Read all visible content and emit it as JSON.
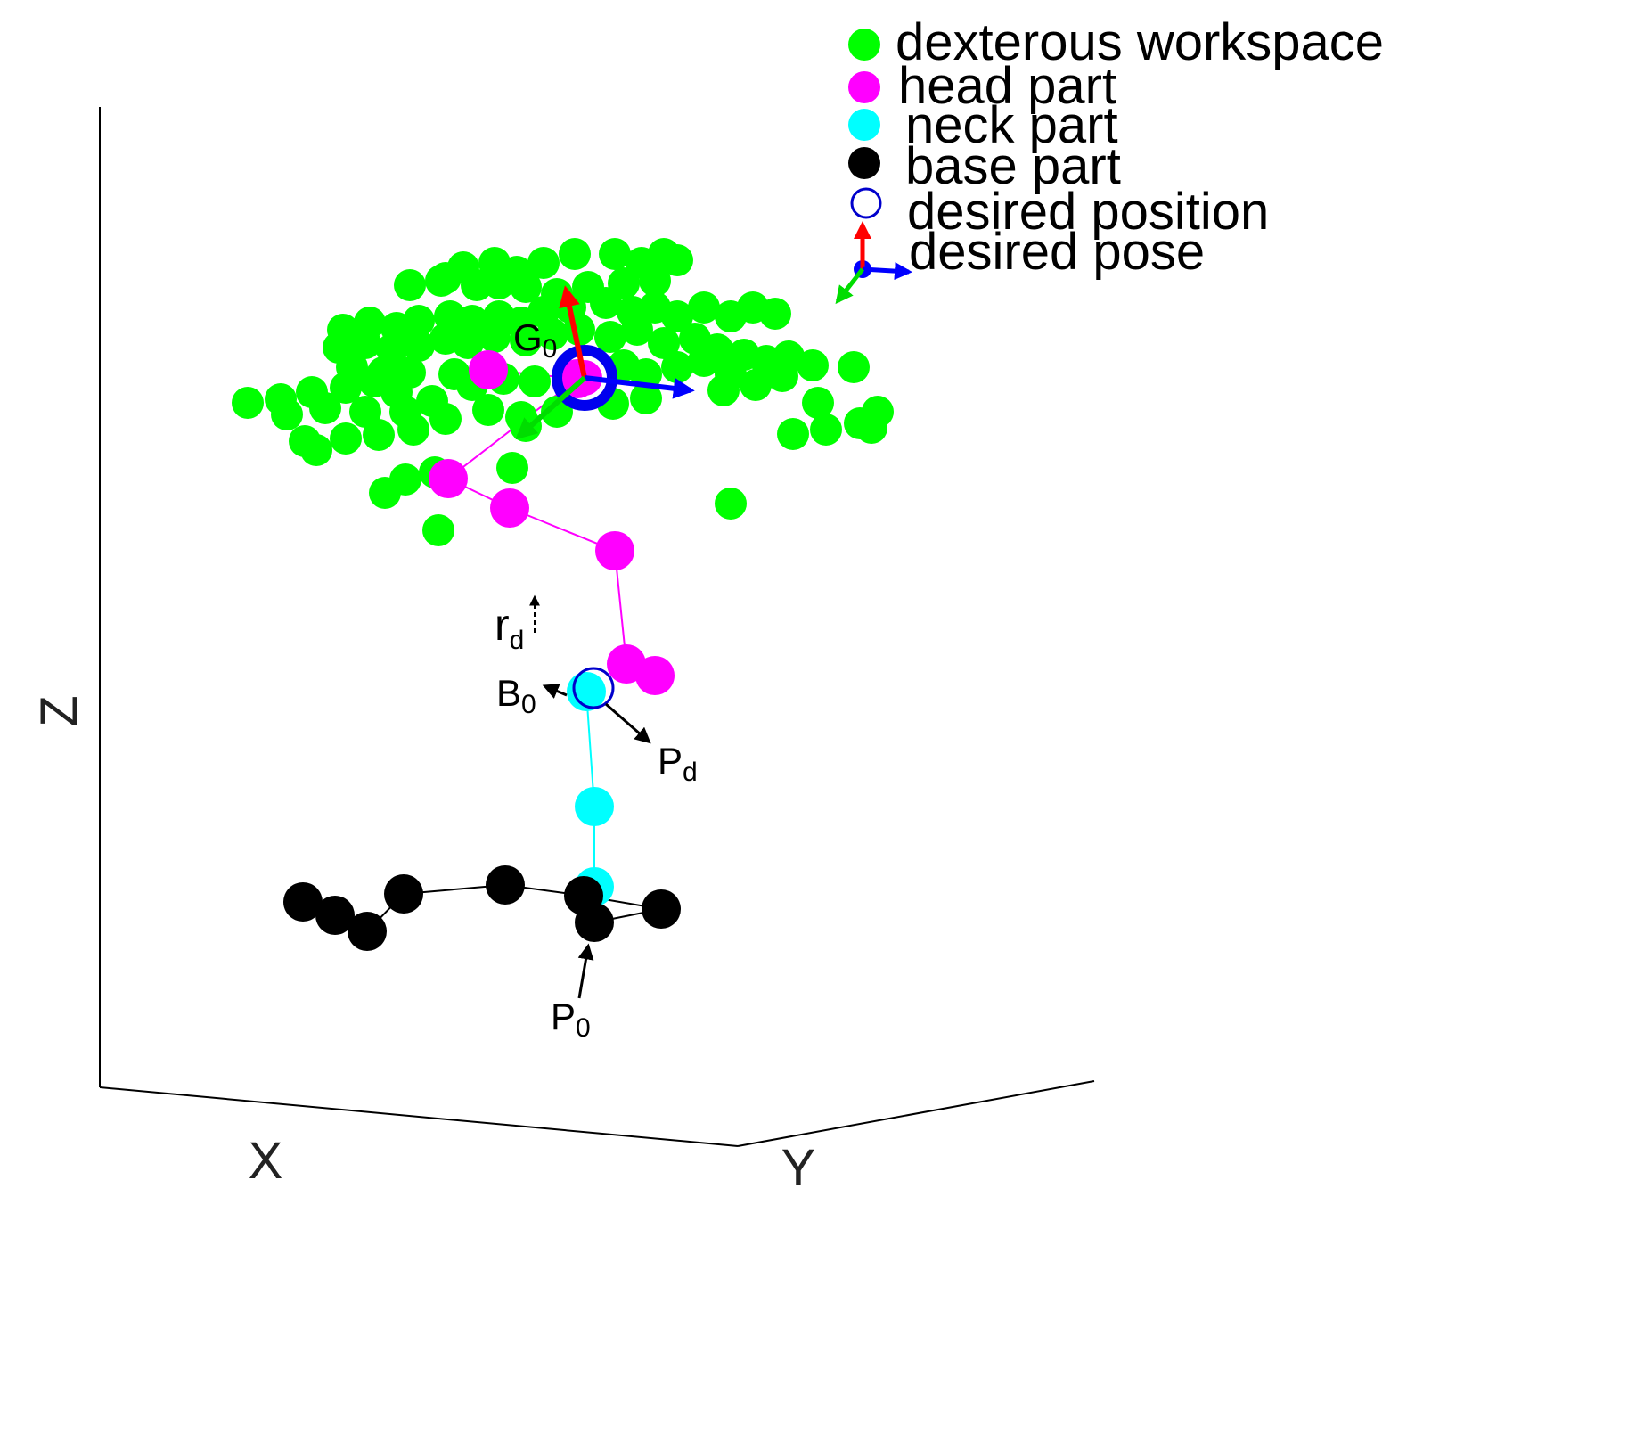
{
  "chart_data": {
    "type": "scatter",
    "title": "",
    "projection": "3d",
    "axes": {
      "x": {
        "label": "X"
      },
      "y": {
        "label": "Y"
      },
      "z": {
        "label": "Z"
      }
    },
    "legend": {
      "placement": "top-right",
      "entries": [
        {
          "key": "workspace",
          "label": "dexterous workspace",
          "color": "#00ff00",
          "marker": "filled-circle"
        },
        {
          "key": "head",
          "label": "head part",
          "color": "#ff00ff",
          "marker": "filled-circle"
        },
        {
          "key": "neck",
          "label": "neck part",
          "color": "#00ffff",
          "marker": "filled-circle"
        },
        {
          "key": "base",
          "label": "base part",
          "color": "#000000",
          "marker": "filled-circle"
        },
        {
          "key": "desired_position",
          "label": "desired position",
          "color": "#0000ff",
          "marker": "open-circle"
        },
        {
          "key": "desired_pose",
          "label": "desired pose",
          "color": "#0000ff",
          "marker": "triad-arrows"
        }
      ]
    },
    "series": [
      {
        "name": "dexterous workspace",
        "color": "#00ff00",
        "points": [
          [
            460,
            320
          ],
          [
            495,
            315
          ],
          [
            520,
            300
          ],
          [
            555,
            295
          ],
          [
            580,
            305
          ],
          [
            610,
            295
          ],
          [
            645,
            285
          ],
          [
            690,
            285
          ],
          [
            720,
            295
          ],
          [
            745,
            285
          ],
          [
            760,
            292
          ],
          [
            500,
            312
          ],
          [
            535,
            320
          ],
          [
            560,
            318
          ],
          [
            590,
            322
          ],
          [
            625,
            330
          ],
          [
            660,
            322
          ],
          [
            700,
            318
          ],
          [
            735,
            315
          ],
          [
            385,
            370
          ],
          [
            415,
            362
          ],
          [
            445,
            368
          ],
          [
            470,
            360
          ],
          [
            505,
            355
          ],
          [
            530,
            360
          ],
          [
            560,
            355
          ],
          [
            585,
            362
          ],
          [
            610,
            350
          ],
          [
            640,
            345
          ],
          [
            680,
            340
          ],
          [
            710,
            350
          ],
          [
            735,
            345
          ],
          [
            760,
            355
          ],
          [
            790,
            345
          ],
          [
            820,
            355
          ],
          [
            845,
            345
          ],
          [
            870,
            352
          ],
          [
            380,
            390
          ],
          [
            410,
            385
          ],
          [
            440,
            392
          ],
          [
            470,
            388
          ],
          [
            500,
            380
          ],
          [
            525,
            385
          ],
          [
            555,
            378
          ],
          [
            590,
            382
          ],
          [
            620,
            375
          ],
          [
            650,
            370
          ],
          [
            685,
            378
          ],
          [
            715,
            370
          ],
          [
            745,
            385
          ],
          [
            780,
            380
          ],
          [
            805,
            392
          ],
          [
            835,
            398
          ],
          [
            860,
            405
          ],
          [
            885,
            400
          ],
          [
            912,
            410
          ],
          [
            958,
            412
          ],
          [
            395,
            412
          ],
          [
            430,
            418
          ],
          [
            460,
            418
          ],
          [
            510,
            420
          ],
          [
            565,
            425
          ],
          [
            600,
            428
          ],
          [
            700,
            410
          ],
          [
            725,
            420
          ],
          [
            760,
            412
          ],
          [
            790,
            405
          ],
          [
            820,
            420
          ],
          [
            848,
            432
          ],
          [
            878,
            422
          ],
          [
            278,
            452
          ],
          [
            315,
            448
          ],
          [
            350,
            440
          ],
          [
            388,
            435
          ],
          [
            420,
            428
          ],
          [
            445,
            440
          ],
          [
            485,
            450
          ],
          [
            530,
            432
          ],
          [
            812,
            438
          ],
          [
            918,
            452
          ],
          [
            322,
            465
          ],
          [
            365,
            458
          ],
          [
            410,
            462
          ],
          [
            455,
            462
          ],
          [
            500,
            470
          ],
          [
            548,
            460
          ],
          [
            585,
            468
          ],
          [
            625,
            462
          ],
          [
            688,
            453
          ],
          [
            725,
            447
          ],
          [
            965,
            475
          ],
          [
            985,
            462
          ],
          [
            342,
            495
          ],
          [
            388,
            492
          ],
          [
            425,
            488
          ],
          [
            464,
            482
          ],
          [
            590,
            478
          ],
          [
            890,
            487
          ],
          [
            927,
            482
          ],
          [
            978,
            480
          ],
          [
            355,
            505
          ],
          [
            575,
            525
          ],
          [
            455,
            538
          ],
          [
            432,
            553
          ],
          [
            488,
            530
          ],
          [
            820,
            565
          ],
          [
            492,
            595
          ]
        ]
      },
      {
        "name": "head part",
        "color": "#ff00ff",
        "points": [
          [
            548,
            415
          ],
          [
            648,
            425
          ],
          [
            503,
            537
          ],
          [
            572,
            570
          ],
          [
            690,
            618
          ],
          [
            703,
            745
          ],
          [
            735,
            758
          ]
        ],
        "connect": true
      },
      {
        "name": "neck part",
        "color": "#00ffff",
        "points": [
          [
            658,
            776
          ],
          [
            667,
            905
          ],
          [
            667,
            995
          ]
        ],
        "connect": true
      },
      {
        "name": "base part",
        "color": "#000000",
        "points": [
          [
            340,
            1012
          ],
          [
            376,
            1027
          ],
          [
            412,
            1045
          ],
          [
            453,
            1003
          ],
          [
            567,
            993
          ],
          [
            655,
            1005
          ],
          [
            742,
            1020
          ],
          [
            667,
            1035
          ]
        ],
        "connect": true
      },
      {
        "name": "desired position",
        "color": "#0000ff",
        "points": [
          [
            666,
            772
          ]
        ]
      }
    ],
    "annotations": [
      {
        "label": "G",
        "sub": "0"
      },
      {
        "label": "r",
        "sub": "d"
      },
      {
        "label": "B",
        "sub": "0"
      },
      {
        "label": "P",
        "sub": "d"
      },
      {
        "label": "P",
        "sub": "0"
      }
    ],
    "grid": false
  }
}
